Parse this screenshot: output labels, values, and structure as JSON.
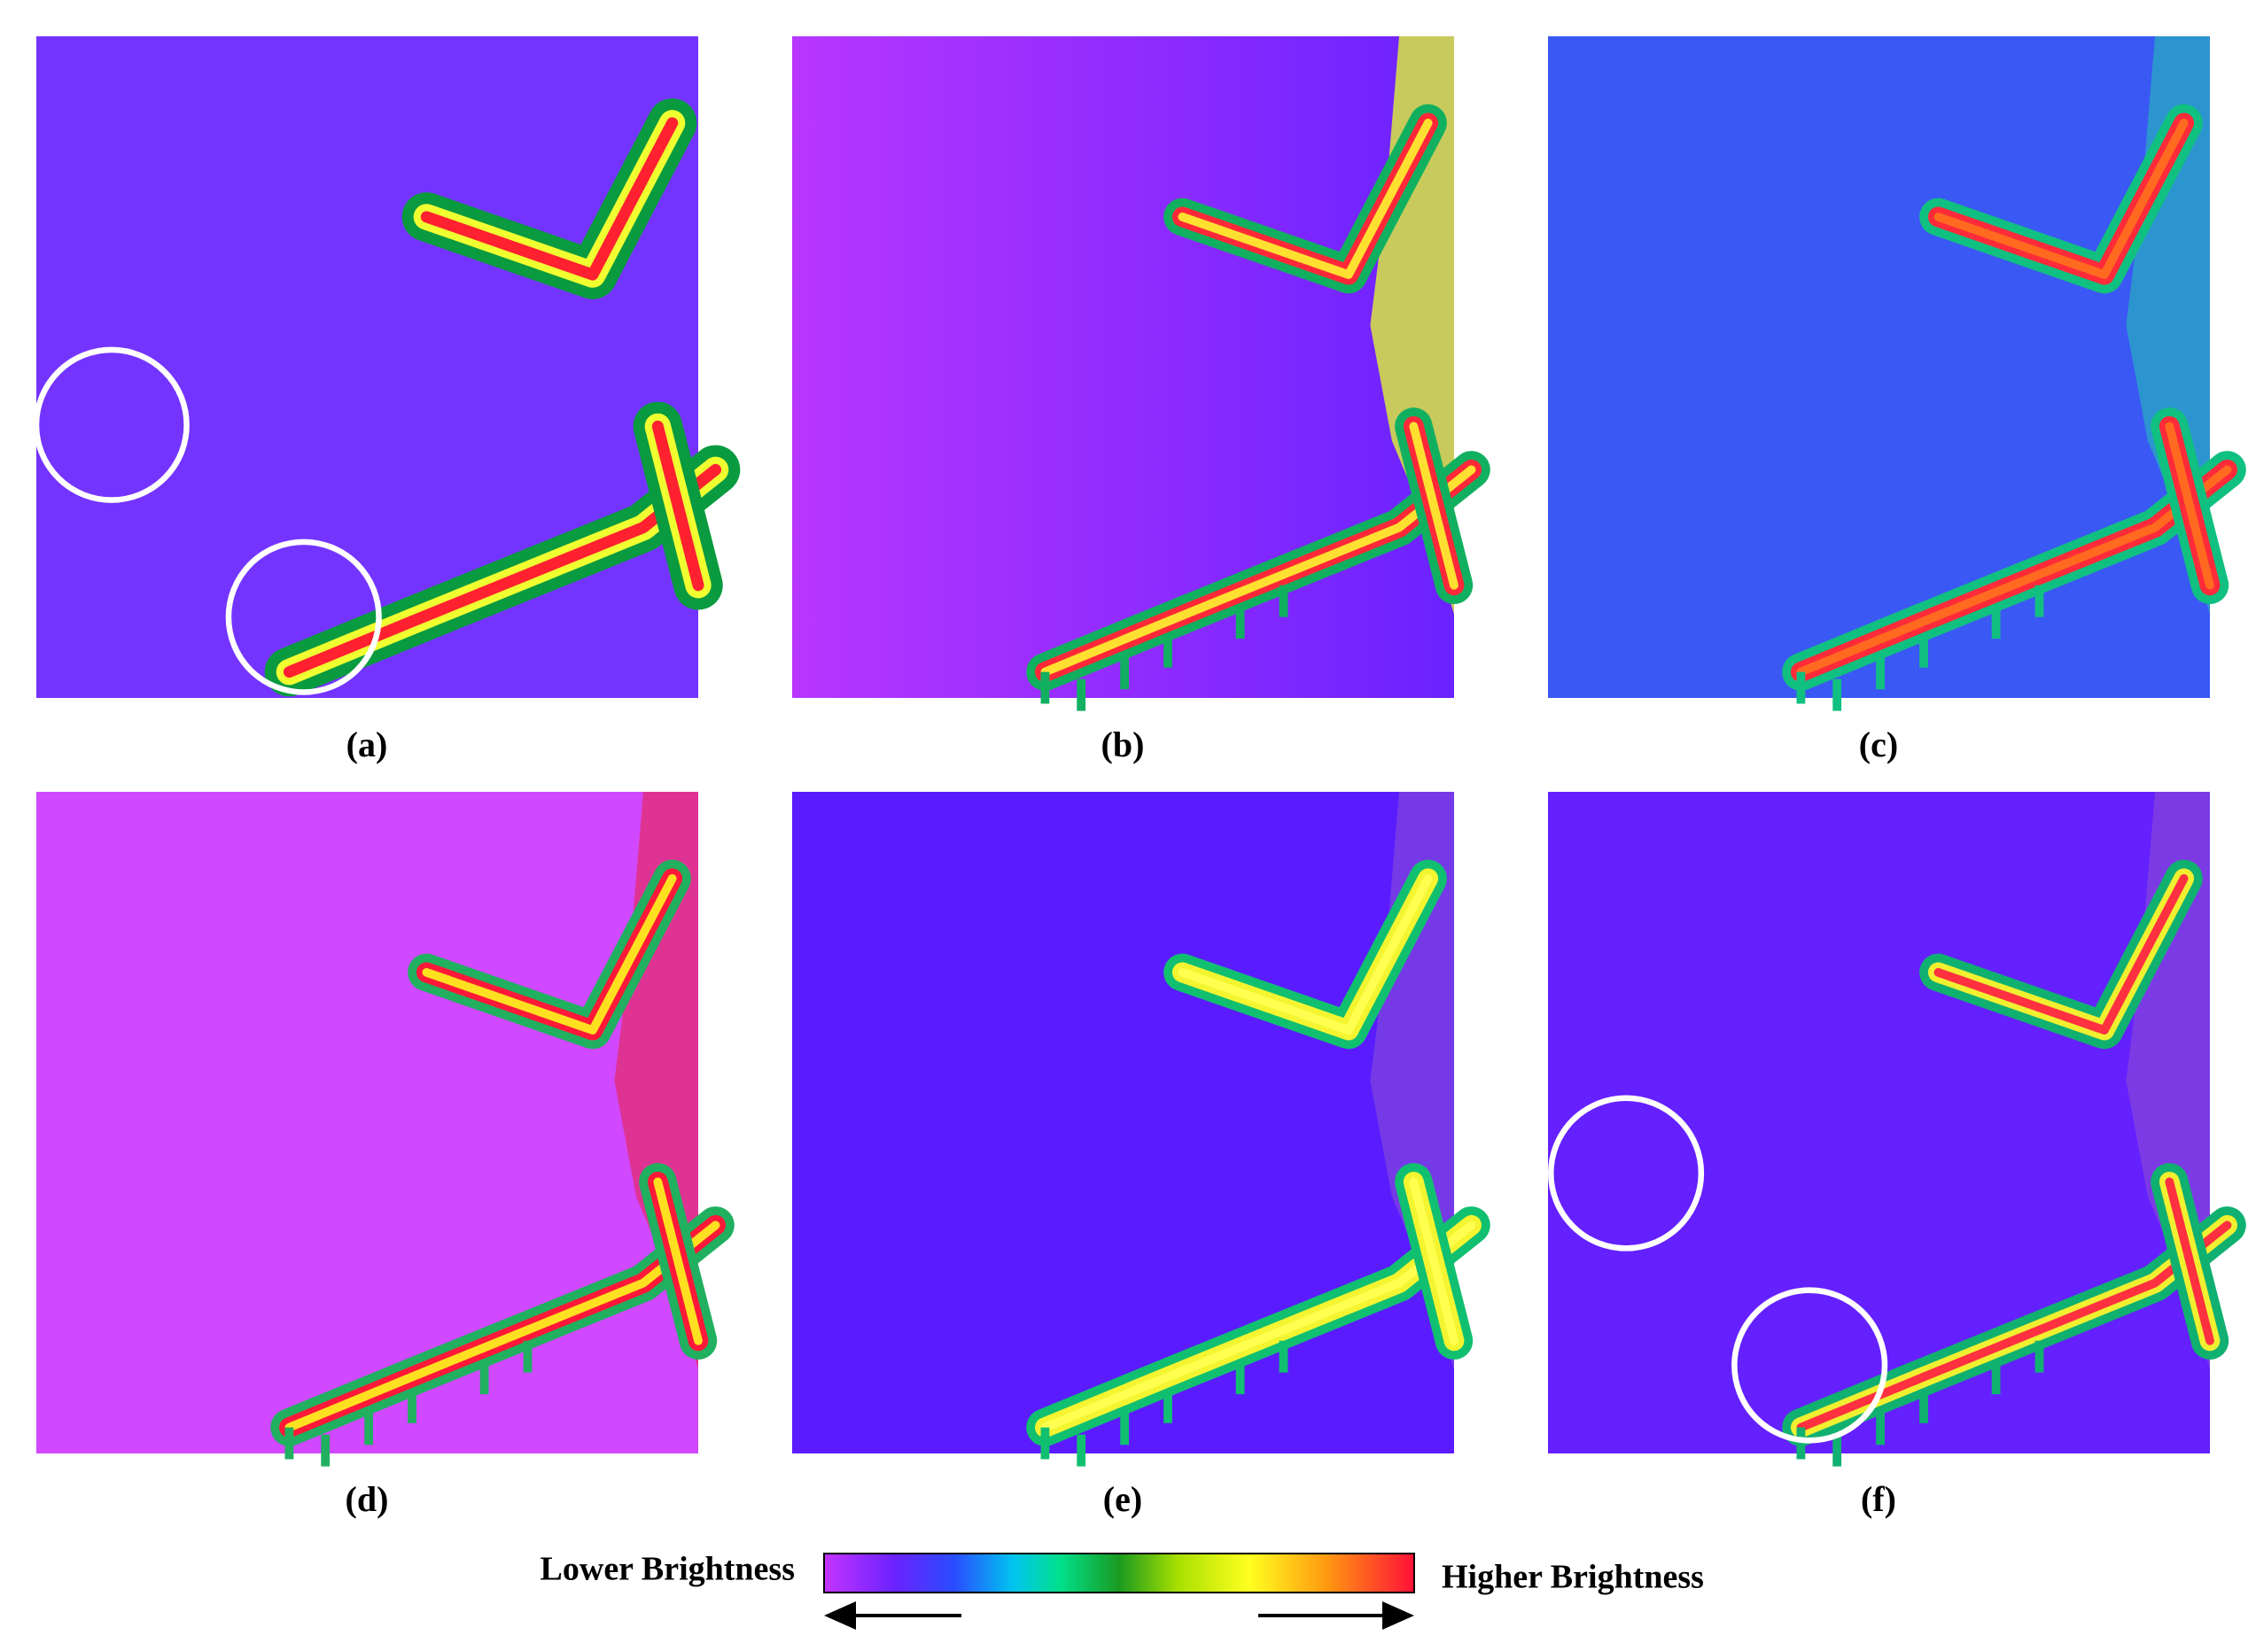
{
  "panels": [
    {
      "label": "(a)"
    },
    {
      "label": "(b)"
    },
    {
      "label": "(c)"
    },
    {
      "label": "(d)"
    },
    {
      "label": "(e)"
    },
    {
      "label": "(f)"
    }
  ],
  "colorbar": {
    "low_label": "Lower Brightness",
    "high_label": "Higher Brightness"
  }
}
